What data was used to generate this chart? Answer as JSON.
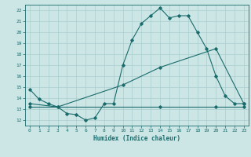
{
  "xlabel": "Humidex (Indice chaleur)",
  "xlim": [
    -0.5,
    23.5
  ],
  "ylim": [
    11.5,
    22.5
  ],
  "yticks": [
    12,
    13,
    14,
    15,
    16,
    17,
    18,
    19,
    20,
    21,
    22
  ],
  "xticks": [
    0,
    1,
    2,
    3,
    4,
    5,
    6,
    7,
    8,
    9,
    10,
    11,
    12,
    13,
    14,
    15,
    16,
    17,
    18,
    19,
    20,
    21,
    22,
    23
  ],
  "bg_color": "#cce5e5",
  "grid_color": "#aacfcf",
  "line_color": "#1a6b6b",
  "series1_x": [
    0,
    1,
    2,
    3,
    4,
    5,
    6,
    7,
    8,
    9,
    10,
    11,
    12,
    13,
    14,
    15,
    16,
    17,
    18,
    19,
    20,
    21,
    22,
    23
  ],
  "series1_y": [
    14.8,
    13.9,
    13.5,
    13.2,
    12.6,
    12.5,
    12.0,
    12.2,
    13.5,
    13.5,
    17.0,
    19.3,
    20.8,
    21.5,
    22.2,
    21.3,
    21.5,
    21.5,
    20.0,
    18.5,
    16.0,
    14.2,
    13.5,
    13.5
  ],
  "series2_x": [
    0,
    3,
    10,
    14,
    20,
    23
  ],
  "series2_y": [
    13.5,
    13.2,
    15.2,
    16.8,
    18.5,
    13.5
  ],
  "series3_x": [
    0,
    14,
    20,
    23
  ],
  "series3_y": [
    13.2,
    13.2,
    13.2,
    13.2
  ]
}
